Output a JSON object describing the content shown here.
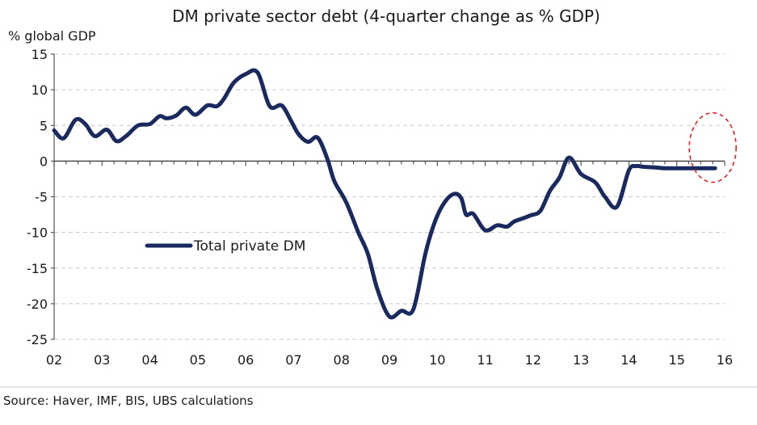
{
  "chart_data": {
    "type": "line",
    "title": "DM private sector  debt (4-quarter change as % GDP)",
    "ylabel": "%  global GDP",
    "xlabel": "",
    "ylim": [
      -25,
      15
    ],
    "xlim": [
      2002,
      2016
    ],
    "yticks": [
      15,
      10,
      5,
      0,
      -5,
      -10,
      -15,
      -20,
      -25
    ],
    "xticks": [
      "02",
      "03",
      "04",
      "05",
      "06",
      "07",
      "08",
      "09",
      "10",
      "11",
      "12",
      "13",
      "14",
      "15",
      "16"
    ],
    "grid": true,
    "legend_position": "center-left",
    "series": [
      {
        "name": "Total private DM",
        "color": "#1b2a5e",
        "x": [
          2002.0,
          2002.2,
          2002.45,
          2002.65,
          2002.85,
          2003.1,
          2003.3,
          2003.5,
          2003.75,
          2004.0,
          2004.2,
          2004.35,
          2004.55,
          2004.75,
          2004.95,
          2005.2,
          2005.4,
          2005.55,
          2005.75,
          2006.0,
          2006.25,
          2006.5,
          2006.75,
          2006.95,
          2007.1,
          2007.3,
          2007.5,
          2007.7,
          2007.85,
          2008.1,
          2008.35,
          2008.55,
          2008.75,
          2009.0,
          2009.25,
          2009.5,
          2009.75,
          2009.95,
          2010.15,
          2010.35,
          2010.5,
          2010.6,
          2010.75,
          2011.0,
          2011.25,
          2011.45,
          2011.6,
          2011.8,
          2011.95,
          2012.15,
          2012.35,
          2012.55,
          2012.75,
          2013.0,
          2013.3,
          2013.5,
          2013.75,
          2014.0,
          2014.15,
          2014.3,
          2014.55,
          2014.75,
          2014.95,
          2015.2,
          2015.35,
          2015.5,
          2015.65,
          2015.8
        ],
        "y": [
          4.3,
          3.2,
          5.8,
          5.2,
          3.5,
          4.4,
          2.8,
          3.5,
          5.0,
          5.2,
          6.3,
          6.0,
          6.4,
          7.5,
          6.5,
          7.8,
          7.7,
          8.8,
          11.0,
          12.2,
          12.4,
          7.7,
          7.8,
          5.6,
          3.8,
          2.7,
          3.3,
          0.4,
          -2.8,
          -5.8,
          -10.0,
          -13.0,
          -18.0,
          -21.8,
          -21.0,
          -20.8,
          -13.0,
          -8.5,
          -5.8,
          -4.6,
          -5.2,
          -7.5,
          -7.4,
          -9.7,
          -9.0,
          -9.2,
          -8.5,
          -8.0,
          -7.6,
          -7.0,
          -4.2,
          -2.3,
          0.5,
          -1.8,
          -3.0,
          -5.0,
          -6.4,
          -1.3,
          -0.7,
          -0.8,
          -0.9,
          -1.0,
          -1.0,
          -1.0,
          -1.0,
          -1.0,
          -1.0,
          -1.0
        ]
      }
    ],
    "annotations": [
      {
        "type": "dashed-ellipse",
        "color": "#e41e26",
        "note": "highlights latest readings"
      }
    ]
  },
  "source": "Source:  Haver, IMF, BIS, UBS calculations"
}
